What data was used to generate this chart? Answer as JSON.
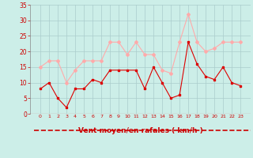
{
  "x": [
    0,
    1,
    2,
    3,
    4,
    5,
    6,
    7,
    8,
    9,
    10,
    11,
    12,
    13,
    14,
    15,
    16,
    17,
    18,
    19,
    20,
    21,
    22,
    23
  ],
  "vent_moyen": [
    8,
    10,
    5,
    2,
    8,
    8,
    11,
    10,
    14,
    14,
    14,
    14,
    8,
    15,
    10,
    5,
    6,
    23,
    16,
    12,
    11,
    15,
    10,
    9
  ],
  "rafales": [
    15,
    17,
    17,
    10,
    14,
    17,
    17,
    17,
    23,
    23,
    19,
    23,
    19,
    19,
    14,
    13,
    23,
    32,
    23,
    20,
    21,
    23,
    23,
    23
  ],
  "color_moyen": "#dd0000",
  "color_rafales": "#ffaaaa",
  "bg_color": "#cceee8",
  "grid_color": "#aacccc",
  "xlabel": "Vent moyen/en rafales ( km/h )",
  "xlabel_color": "#cc0000",
  "ylim": [
    0,
    35
  ],
  "yticks": [
    0,
    5,
    10,
    15,
    20,
    25,
    30,
    35
  ],
  "arrow_color": "#cc0000"
}
